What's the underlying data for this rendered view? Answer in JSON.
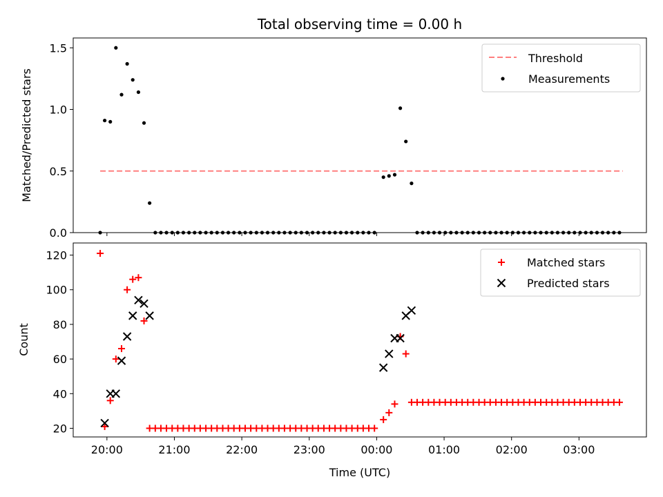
{
  "chart_data": [
    {
      "type": "scatter",
      "title": "Total observing time = 0.00 h",
      "xlabel": "",
      "ylabel": "Matched/Predicted stars",
      "x_unit": "hours since 00:00 UTC",
      "xlim": [
        -4.5,
        4.0
      ],
      "ylim": [
        0,
        1.58
      ],
      "yticks": [
        0.0,
        0.5,
        1.0,
        1.5
      ],
      "ytick_labels": [
        "0.0",
        "0.5",
        "1.0",
        "1.5"
      ],
      "legend_position": "top-right",
      "series": [
        {
          "name": "Threshold",
          "kind": "dashed-line",
          "color": "#ff7f7f",
          "x": [
            -4.1,
            3.65
          ],
          "y": [
            0.5,
            0.5
          ]
        },
        {
          "name": "Measurements",
          "kind": "points",
          "color": "#000000",
          "points": [
            [
              -4.1,
              0.0
            ],
            [
              -4.033,
              0.91
            ],
            [
              -3.95,
              0.9
            ],
            [
              -3.867,
              1.5
            ],
            [
              -3.783,
              1.12
            ],
            [
              -3.7,
              1.37
            ],
            [
              -3.617,
              1.24
            ],
            [
              -3.533,
              1.14
            ],
            [
              -3.45,
              0.89
            ],
            [
              -3.367,
              0.24
            ],
            [
              -3.283,
              0.0
            ],
            [
              -3.2,
              0.0
            ],
            [
              -3.117,
              0.0
            ],
            [
              -3.033,
              0.0
            ],
            [
              -2.95,
              0.0
            ],
            [
              -2.867,
              0.0
            ],
            [
              -2.783,
              0.0
            ],
            [
              -2.7,
              0.0
            ],
            [
              -2.617,
              0.0
            ],
            [
              -2.533,
              0.0
            ],
            [
              -2.45,
              0.0
            ],
            [
              -2.367,
              0.0
            ],
            [
              -2.283,
              0.0
            ],
            [
              -2.2,
              0.0
            ],
            [
              -2.117,
              0.0
            ],
            [
              -2.033,
              0.0
            ],
            [
              -1.95,
              0.0
            ],
            [
              -1.867,
              0.0
            ],
            [
              -1.783,
              0.0
            ],
            [
              -1.7,
              0.0
            ],
            [
              -1.617,
              0.0
            ],
            [
              -1.533,
              0.0
            ],
            [
              -1.45,
              0.0
            ],
            [
              -1.367,
              0.0
            ],
            [
              -1.283,
              0.0
            ],
            [
              -1.2,
              0.0
            ],
            [
              -1.117,
              0.0
            ],
            [
              -1.033,
              0.0
            ],
            [
              -0.95,
              0.0
            ],
            [
              -0.867,
              0.0
            ],
            [
              -0.783,
              0.0
            ],
            [
              -0.7,
              0.0
            ],
            [
              -0.617,
              0.0
            ],
            [
              -0.533,
              0.0
            ],
            [
              -0.45,
              0.0
            ],
            [
              -0.367,
              0.0
            ],
            [
              -0.283,
              0.0
            ],
            [
              -0.2,
              0.0
            ],
            [
              -0.117,
              0.0
            ],
            [
              -0.033,
              0.0
            ],
            [
              0.1,
              0.45
            ],
            [
              0.183,
              0.46
            ],
            [
              0.267,
              0.47
            ],
            [
              0.35,
              1.01
            ],
            [
              0.433,
              0.74
            ],
            [
              0.517,
              0.4
            ],
            [
              0.6,
              0.0
            ],
            [
              0.683,
              0.0
            ],
            [
              0.767,
              0.0
            ],
            [
              0.85,
              0.0
            ],
            [
              0.933,
              0.0
            ],
            [
              1.017,
              0.0
            ],
            [
              1.1,
              0.0
            ],
            [
              1.183,
              0.0
            ],
            [
              1.267,
              0.0
            ],
            [
              1.35,
              0.0
            ],
            [
              1.433,
              0.0
            ],
            [
              1.517,
              0.0
            ],
            [
              1.6,
              0.0
            ],
            [
              1.683,
              0.0
            ],
            [
              1.767,
              0.0
            ],
            [
              1.85,
              0.0
            ],
            [
              1.933,
              0.0
            ],
            [
              2.017,
              0.0
            ],
            [
              2.1,
              0.0
            ],
            [
              2.183,
              0.0
            ],
            [
              2.267,
              0.0
            ],
            [
              2.35,
              0.0
            ],
            [
              2.433,
              0.0
            ],
            [
              2.517,
              0.0
            ],
            [
              2.6,
              0.0
            ],
            [
              2.683,
              0.0
            ],
            [
              2.767,
              0.0
            ],
            [
              2.85,
              0.0
            ],
            [
              2.933,
              0.0
            ],
            [
              3.017,
              0.0
            ],
            [
              3.1,
              0.0
            ],
            [
              3.183,
              0.0
            ],
            [
              3.267,
              0.0
            ],
            [
              3.35,
              0.0
            ],
            [
              3.433,
              0.0
            ],
            [
              3.517,
              0.0
            ],
            [
              3.6,
              0.0
            ]
          ]
        }
      ]
    },
    {
      "type": "scatter",
      "title": "",
      "xlabel": "Time (UTC)",
      "ylabel": "Count",
      "x_unit": "hours since 00:00 UTC",
      "xlim": [
        -4.5,
        4.0
      ],
      "ylim": [
        15,
        127
      ],
      "yticks": [
        20,
        40,
        60,
        80,
        100,
        120
      ],
      "ytick_labels": [
        "20",
        "40",
        "60",
        "80",
        "100",
        "120"
      ],
      "xticks": [
        -4,
        -3,
        -2,
        -1,
        0,
        1,
        2,
        3
      ],
      "xtick_labels": [
        "20:00",
        "21:00",
        "22:00",
        "23:00",
        "00:00",
        "01:00",
        "02:00",
        "03:00"
      ],
      "legend_position": "top-right",
      "series": [
        {
          "name": "Matched stars",
          "marker": "plus",
          "color": "#ff0000",
          "points": [
            [
              -4.1,
              121
            ],
            [
              -4.033,
              21
            ],
            [
              -3.95,
              36
            ],
            [
              -3.867,
              60
            ],
            [
              -3.783,
              66
            ],
            [
              -3.7,
              100
            ],
            [
              -3.617,
              106
            ],
            [
              -3.533,
              107
            ],
            [
              -3.45,
              82
            ],
            [
              -3.367,
              20
            ],
            [
              -3.283,
              20
            ],
            [
              -3.2,
              20
            ],
            [
              -3.117,
              20
            ],
            [
              -3.033,
              20
            ],
            [
              -2.95,
              20
            ],
            [
              -2.867,
              20
            ],
            [
              -2.783,
              20
            ],
            [
              -2.7,
              20
            ],
            [
              -2.617,
              20
            ],
            [
              -2.533,
              20
            ],
            [
              -2.45,
              20
            ],
            [
              -2.367,
              20
            ],
            [
              -2.283,
              20
            ],
            [
              -2.2,
              20
            ],
            [
              -2.117,
              20
            ],
            [
              -2.033,
              20
            ],
            [
              -1.95,
              20
            ],
            [
              -1.867,
              20
            ],
            [
              -1.783,
              20
            ],
            [
              -1.7,
              20
            ],
            [
              -1.617,
              20
            ],
            [
              -1.533,
              20
            ],
            [
              -1.45,
              20
            ],
            [
              -1.367,
              20
            ],
            [
              -1.283,
              20
            ],
            [
              -1.2,
              20
            ],
            [
              -1.117,
              20
            ],
            [
              -1.033,
              20
            ],
            [
              -0.95,
              20
            ],
            [
              -0.867,
              20
            ],
            [
              -0.783,
              20
            ],
            [
              -0.7,
              20
            ],
            [
              -0.617,
              20
            ],
            [
              -0.533,
              20
            ],
            [
              -0.45,
              20
            ],
            [
              -0.367,
              20
            ],
            [
              -0.283,
              20
            ],
            [
              -0.2,
              20
            ],
            [
              -0.117,
              20
            ],
            [
              -0.033,
              20
            ],
            [
              0.1,
              25
            ],
            [
              0.183,
              29
            ],
            [
              0.267,
              34
            ],
            [
              0.35,
              73
            ],
            [
              0.433,
              63
            ],
            [
              0.517,
              35
            ],
            [
              0.6,
              35
            ],
            [
              0.683,
              35
            ],
            [
              0.767,
              35
            ],
            [
              0.85,
              35
            ],
            [
              0.933,
              35
            ],
            [
              1.017,
              35
            ],
            [
              1.1,
              35
            ],
            [
              1.183,
              35
            ],
            [
              1.267,
              35
            ],
            [
              1.35,
              35
            ],
            [
              1.433,
              35
            ],
            [
              1.517,
              35
            ],
            [
              1.6,
              35
            ],
            [
              1.683,
              35
            ],
            [
              1.767,
              35
            ],
            [
              1.85,
              35
            ],
            [
              1.933,
              35
            ],
            [
              2.017,
              35
            ],
            [
              2.1,
              35
            ],
            [
              2.183,
              35
            ],
            [
              2.267,
              35
            ],
            [
              2.35,
              35
            ],
            [
              2.433,
              35
            ],
            [
              2.517,
              35
            ],
            [
              2.6,
              35
            ],
            [
              2.683,
              35
            ],
            [
              2.767,
              35
            ],
            [
              2.85,
              35
            ],
            [
              2.933,
              35
            ],
            [
              3.017,
              35
            ],
            [
              3.1,
              35
            ],
            [
              3.183,
              35
            ],
            [
              3.267,
              35
            ],
            [
              3.35,
              35
            ],
            [
              3.433,
              35
            ],
            [
              3.517,
              35
            ],
            [
              3.6,
              35
            ]
          ]
        },
        {
          "name": "Predicted stars",
          "marker": "x",
          "color": "#000000",
          "points": [
            [
              -4.033,
              23
            ],
            [
              -3.95,
              40
            ],
            [
              -3.867,
              40
            ],
            [
              -3.783,
              59
            ],
            [
              -3.7,
              73
            ],
            [
              -3.617,
              85
            ],
            [
              -3.533,
              94
            ],
            [
              -3.45,
              92
            ],
            [
              -3.367,
              85
            ],
            [
              0.1,
              55
            ],
            [
              0.183,
              63
            ],
            [
              0.267,
              72
            ],
            [
              0.35,
              72
            ],
            [
              0.433,
              85
            ],
            [
              0.517,
              88
            ]
          ]
        }
      ]
    }
  ]
}
